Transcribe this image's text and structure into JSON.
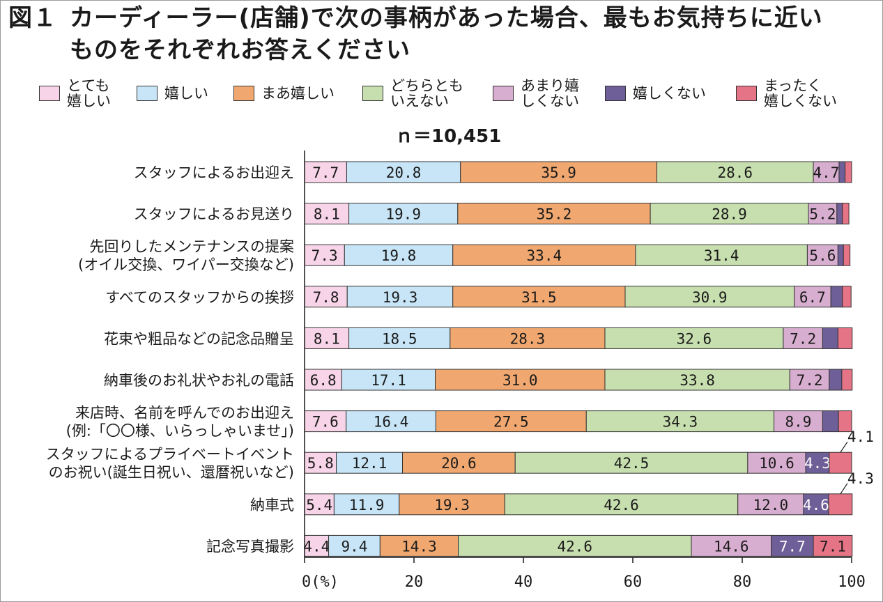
{
  "title": {
    "figure": "図１",
    "line1": "カーディーラー(店舗)で次の事柄があった場合、最もお気持ちに近い",
    "line2": "ものをそれぞれお答えください"
  },
  "n_label": "ｎ＝10,451",
  "legend": [
    {
      "lines": [
        "とても",
        "嬉しい"
      ],
      "color": "#f7d4e7"
    },
    {
      "lines": [
        "嬉しい"
      ],
      "color": "#c7e5f6"
    },
    {
      "lines": [
        "まあ嬉しい"
      ],
      "color": "#f0a870"
    },
    {
      "lines": [
        "どちらとも",
        "いえない"
      ],
      "color": "#c7dfae"
    },
    {
      "lines": [
        "あまり嬉",
        "しくない"
      ],
      "color": "#d8aed0"
    },
    {
      "lines": [
        "嬉しくない"
      ],
      "color": "#6f5f98"
    },
    {
      "lines": [
        "まったく",
        "嬉しくない"
      ],
      "color": "#e57486"
    }
  ],
  "chart_data": {
    "type": "bar",
    "orientation": "horizontal",
    "stacked": true,
    "xlim": [
      0,
      100
    ],
    "x_ticks": [
      "0(%)",
      "20",
      "40",
      "60",
      "80",
      "100"
    ],
    "categories": [
      [
        "スタッフによるお出迎え"
      ],
      [
        "スタッフによるお見送り"
      ],
      [
        "先回りしたメンテナンスの提案",
        "(オイル交換、ワイパー交換など)"
      ],
      [
        "すべてのスタッフからの挨拶"
      ],
      [
        "花束や粗品などの記念品贈呈"
      ],
      [
        "納車後のお礼状やお礼の電話"
      ],
      [
        "来店時、名前を呼んでのお出迎え",
        "(例:「〇〇様、いらっしゃいませ」)"
      ],
      [
        "スタッフによるプライベートイベント",
        "のお祝い(誕生日祝い、還暦祝いなど)"
      ],
      [
        "納車式"
      ],
      [
        "記念写真撮影"
      ]
    ],
    "series": [
      {
        "name": "とても嬉しい",
        "values": [
          7.7,
          8.1,
          7.3,
          7.8,
          8.1,
          6.8,
          7.6,
          5.8,
          5.4,
          4.4
        ]
      },
      {
        "name": "嬉しい",
        "values": [
          20.8,
          19.9,
          19.8,
          19.3,
          18.5,
          17.1,
          16.4,
          12.1,
          11.9,
          9.4
        ]
      },
      {
        "name": "まあ嬉しい",
        "values": [
          35.9,
          35.2,
          33.4,
          31.5,
          28.3,
          31.0,
          27.5,
          20.6,
          19.3,
          14.3
        ]
      },
      {
        "name": "どちらともいえない",
        "values": [
          28.6,
          28.9,
          31.4,
          30.9,
          32.6,
          33.8,
          34.3,
          42.5,
          42.6,
          42.6
        ]
      },
      {
        "name": "あまり嬉しくない",
        "values": [
          4.7,
          5.2,
          5.6,
          6.7,
          7.2,
          7.2,
          8.9,
          10.6,
          12.0,
          14.6
        ]
      },
      {
        "name": "嬉しくない",
        "values": [
          1.1,
          1.0,
          1.0,
          2.1,
          2.8,
          2.3,
          2.9,
          4.3,
          4.6,
          7.7
        ]
      },
      {
        "name": "まったく嬉しくない",
        "values": [
          1.2,
          1.2,
          1.2,
          1.6,
          2.6,
          1.9,
          2.4,
          4.1,
          4.3,
          7.1
        ]
      }
    ],
    "data_labels": [
      [
        "7.7",
        "20.8",
        "35.9",
        "28.6",
        "4.7",
        "",
        ""
      ],
      [
        "8.1",
        "19.9",
        "35.2",
        "28.9",
        "5.2",
        "",
        ""
      ],
      [
        "7.3",
        "19.8",
        "33.4",
        "31.4",
        "5.6",
        "",
        ""
      ],
      [
        "7.8",
        "19.3",
        "31.5",
        "30.9",
        "6.7",
        "",
        ""
      ],
      [
        "8.1",
        "18.5",
        "28.3",
        "32.6",
        "7.2",
        "",
        ""
      ],
      [
        "6.8",
        "17.1",
        "31.0",
        "33.8",
        "7.2",
        "",
        ""
      ],
      [
        "7.6",
        "16.4",
        "27.5",
        "34.3",
        "8.9",
        "",
        ""
      ],
      [
        "5.8",
        "12.1",
        "20.6",
        "42.5",
        "10.6",
        "4.3",
        ""
      ],
      [
        "5.4",
        "11.9",
        "19.3",
        "42.6",
        "12.0",
        "4.6",
        ""
      ],
      [
        "4.4",
        "9.4",
        "14.3",
        "42.6",
        "14.6",
        "7.7",
        "7.1"
      ]
    ],
    "callouts": [
      {
        "row": 7,
        "series": 6,
        "label": "4.1"
      },
      {
        "row": 8,
        "series": 6,
        "label": "4.3"
      }
    ]
  }
}
